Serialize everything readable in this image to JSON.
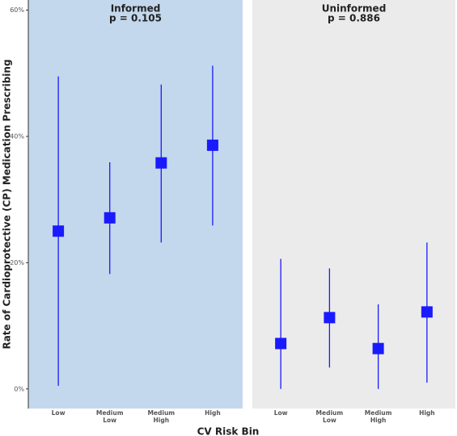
{
  "x_label": "CV Risk Bin",
  "y_label": "Rate of Cardioprotective (CP) Medication Prescribing",
  "chart_data": [
    {
      "type": "pointrange",
      "title": "Informed",
      "subtitle": "p = 0.105",
      "background": "#c3d8ec",
      "categories": [
        "Low",
        "Medium Low",
        "Medium High",
        "High"
      ],
      "series": [
        {
          "color": "#1a1aff",
          "values": [
            25.0,
            27.1,
            35.8,
            38.6
          ],
          "lower": [
            0.5,
            18.2,
            23.2,
            25.9
          ],
          "upper": [
            49.5,
            35.9,
            48.2,
            51.2
          ]
        }
      ],
      "ylim": [
        -3.1,
        61.6
      ],
      "yticks": [
        {
          "value": 0,
          "label": "0%"
        },
        {
          "value": 20,
          "label": "20%"
        },
        {
          "value": 40,
          "label": "40%"
        },
        {
          "value": 60,
          "label": "60%"
        }
      ]
    },
    {
      "type": "pointrange",
      "title": "Uninformed",
      "subtitle": "p = 0.886",
      "background": "#ebebeb",
      "categories": [
        "Low",
        "Medium Low",
        "Medium High",
        "High"
      ],
      "series": [
        {
          "color": "#1a1aff",
          "values": [
            7.2,
            11.3,
            6.4,
            12.2
          ],
          "lower": [
            0,
            3.4,
            0,
            1.0
          ],
          "upper": [
            20.6,
            19.1,
            13.4,
            23.2
          ]
        }
      ],
      "ylim": [
        -3.1,
        61.6
      ]
    }
  ]
}
